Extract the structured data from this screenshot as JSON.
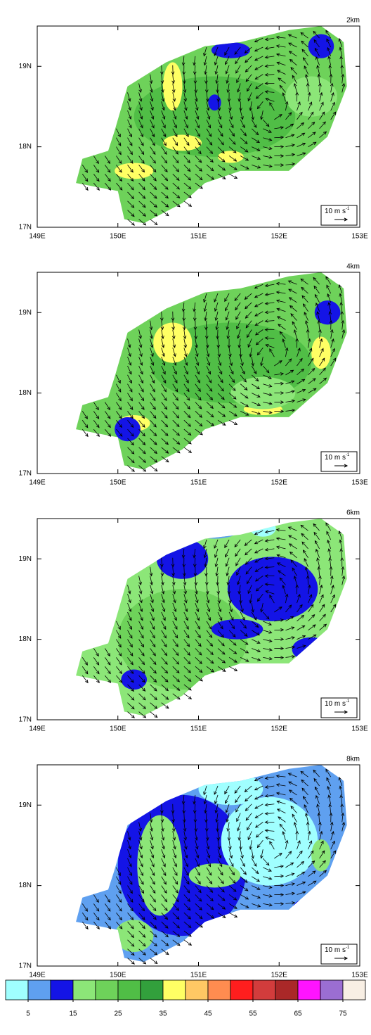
{
  "chart_data": [
    {
      "type": "map",
      "title": "2km",
      "xlim": [
        149,
        153
      ],
      "xticks": [
        {
          "value": 149,
          "label": "149E"
        },
        {
          "value": 150,
          "label": "150E"
        },
        {
          "value": 151,
          "label": "151E"
        },
        {
          "value": 152,
          "label": "152E"
        },
        {
          "value": 153,
          "label": "153E"
        }
      ],
      "ylim": [
        17,
        19.5
      ],
      "yticks": [
        {
          "value": 17,
          "label": "17N"
        },
        {
          "value": 18,
          "label": "18N"
        },
        {
          "value": 19,
          "label": "19N"
        }
      ],
      "vector_label": "10 m s",
      "vector_label_exponent": "-1"
    },
    {
      "type": "map",
      "title": "4km",
      "xlim": [
        149,
        153
      ],
      "xticks": [
        {
          "value": 149,
          "label": "149E"
        },
        {
          "value": 150,
          "label": "150E"
        },
        {
          "value": 151,
          "label": "151E"
        },
        {
          "value": 152,
          "label": "152E"
        },
        {
          "value": 153,
          "label": "153E"
        }
      ],
      "ylim": [
        17,
        19.5
      ],
      "yticks": [
        {
          "value": 17,
          "label": "17N"
        },
        {
          "value": 18,
          "label": "18N"
        },
        {
          "value": 19,
          "label": "19N"
        }
      ],
      "vector_label": "10 m s",
      "vector_label_exponent": "-1"
    },
    {
      "type": "map",
      "title": "6km",
      "xlim": [
        149,
        153
      ],
      "xticks": [
        {
          "value": 149,
          "label": "149E"
        },
        {
          "value": 150,
          "label": "150E"
        },
        {
          "value": 151,
          "label": "151E"
        },
        {
          "value": 152,
          "label": "152E"
        },
        {
          "value": 153,
          "label": "153E"
        }
      ],
      "ylim": [
        17,
        19.5
      ],
      "yticks": [
        {
          "value": 17,
          "label": "17N"
        },
        {
          "value": 18,
          "label": "18N"
        },
        {
          "value": 19,
          "label": "19N"
        }
      ],
      "vector_label": "10 m s",
      "vector_label_exponent": "-1"
    },
    {
      "type": "map",
      "title": "8km",
      "xlim": [
        149,
        153
      ],
      "xticks": [
        {
          "value": 149,
          "label": "149E"
        },
        {
          "value": 150,
          "label": "150E"
        },
        {
          "value": 151,
          "label": "151E"
        },
        {
          "value": 152,
          "label": "152E"
        },
        {
          "value": 153,
          "label": "153E"
        }
      ],
      "ylim": [
        17,
        19.5
      ],
      "yticks": [
        {
          "value": 17,
          "label": "17N"
        },
        {
          "value": 18,
          "label": "18N"
        },
        {
          "value": 19,
          "label": "19N"
        }
      ],
      "vector_label": "10 m s",
      "vector_label_exponent": "-1"
    },
    {
      "type": "colorbar",
      "colors": [
        "#a0ffff",
        "#5fa0f0",
        "#1414e6",
        "#8ce678",
        "#6ed25a",
        "#50be46",
        "#32a03c",
        "#ffff64",
        "#ffc864",
        "#ff8c50",
        "#ff1e1e",
        "#d23c3c",
        "#aa2828",
        "#ff14ff",
        "#9b6ed2",
        "#f8efe4"
      ],
      "xlim": [
        0,
        80
      ],
      "xticks": [
        5,
        15,
        25,
        35,
        45,
        55,
        65,
        75
      ]
    }
  ]
}
